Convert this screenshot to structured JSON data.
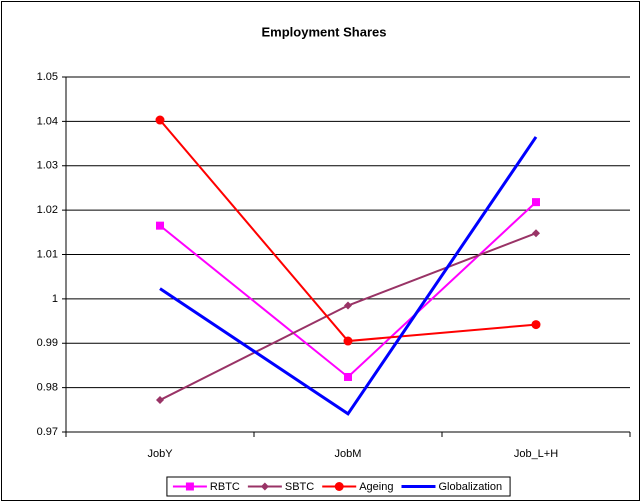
{
  "chart_data": {
    "type": "line",
    "title": "Employment Shares",
    "categories": [
      "JobY",
      "JobM",
      "Job_L+H"
    ],
    "series": [
      {
        "name": "RBTC",
        "color": "#ff00ff",
        "marker": "square",
        "values": [
          1.0165,
          0.9824,
          1.0218
        ]
      },
      {
        "name": "SBTC",
        "color": "#993366",
        "marker": "diamond",
        "values": [
          0.9772,
          0.9985,
          1.0148
        ]
      },
      {
        "name": "Ageing",
        "color": "#ff0000",
        "marker": "circle",
        "values": [
          1.0403,
          0.9905,
          0.9942
        ]
      },
      {
        "name": "Globalization",
        "color": "#0000ff",
        "values": [
          1.0023,
          0.9741,
          1.0365
        ]
      }
    ],
    "ylim": [
      0.97,
      1.05
    ],
    "yticks": [
      0.97,
      0.98,
      0.99,
      1,
      1.01,
      1.02,
      1.03,
      1.04,
      1.05
    ],
    "grid": true,
    "legend": "bottom"
  }
}
